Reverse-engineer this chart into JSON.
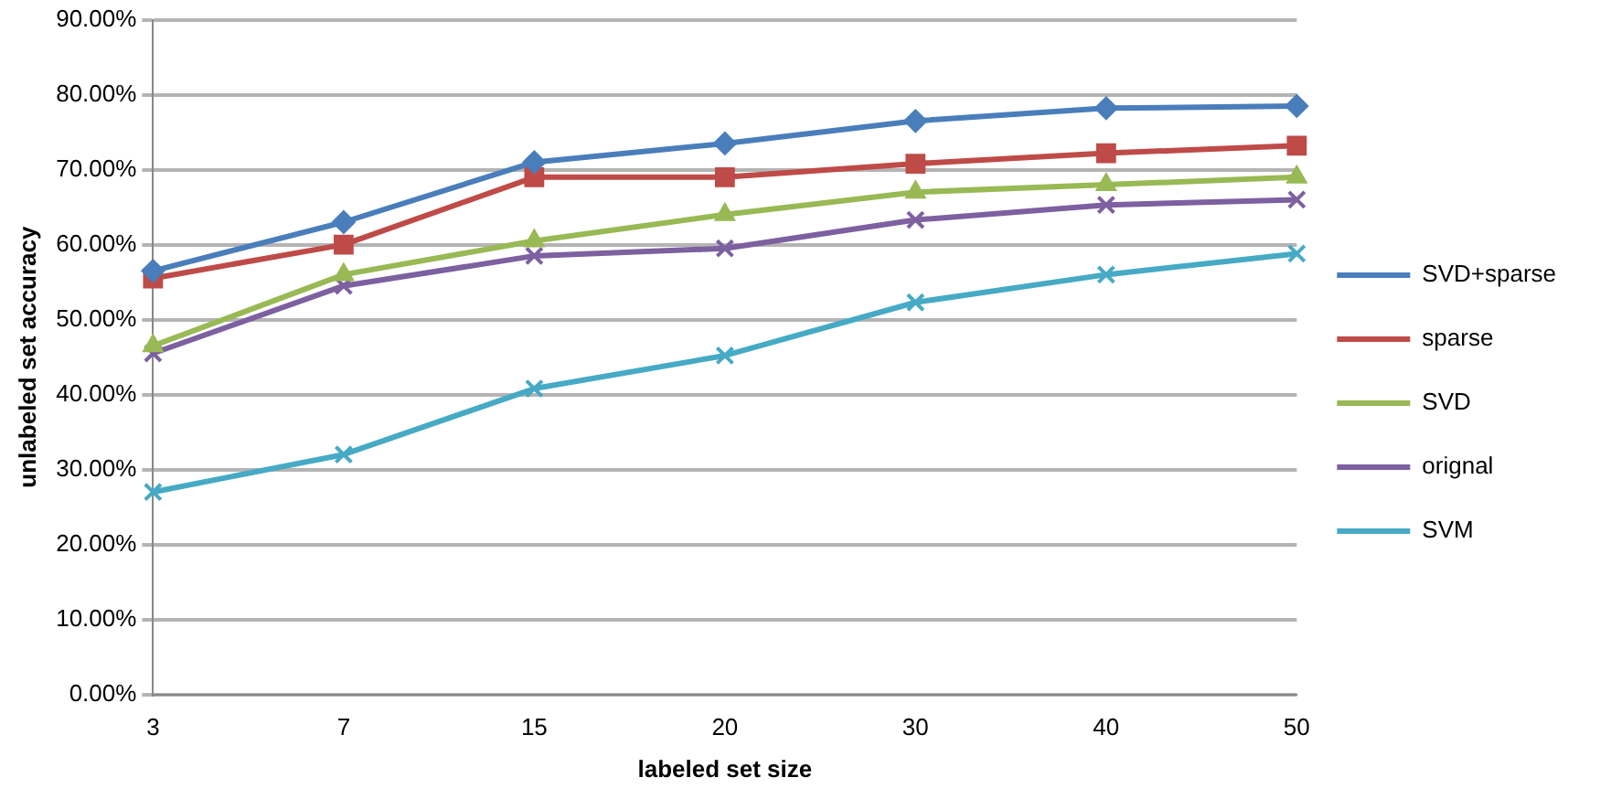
{
  "chart_data": {
    "type": "line",
    "xlabel": "labeled set size",
    "ylabel": "unlabeled set accuracy",
    "categories": [
      "3",
      "7",
      "15",
      "20",
      "30",
      "40",
      "50"
    ],
    "series": [
      {
        "name": "SVD+sparse",
        "color": "#4a7ebb",
        "marker": "diamond",
        "values": [
          56.5,
          63,
          71,
          73.5,
          76.5,
          78.2,
          78.5
        ]
      },
      {
        "name": "sparse",
        "color": "#be4b48",
        "marker": "square",
        "values": [
          55.5,
          60,
          69,
          69,
          70.8,
          72.2,
          73.2
        ]
      },
      {
        "name": "SVD",
        "color": "#98b954",
        "marker": "triangle",
        "values": [
          46.5,
          56,
          60.5,
          64,
          67,
          68,
          69
        ]
      },
      {
        "name": "orignal",
        "color": "#7d60a0",
        "marker": "cross",
        "values": [
          45.5,
          54.5,
          58.5,
          59.5,
          63.3,
          65.3,
          66
        ]
      },
      {
        "name": "SVM",
        "color": "#46aac5",
        "marker": "cross",
        "values": [
          27,
          32,
          40.8,
          45.2,
          52.3,
          56,
          58.8
        ]
      }
    ],
    "ylim": [
      0,
      90
    ],
    "yticks": [
      {
        "value": 0,
        "label": "0.00%"
      },
      {
        "value": 10,
        "label": "10.00%"
      },
      {
        "value": 20,
        "label": "20.00%"
      },
      {
        "value": 30,
        "label": "30.00%"
      },
      {
        "value": 40,
        "label": "40.00%"
      },
      {
        "value": 50,
        "label": "50.00%"
      },
      {
        "value": 60,
        "label": "60.00%"
      },
      {
        "value": 70,
        "label": "70.00%"
      },
      {
        "value": 80,
        "label": "80.00%"
      },
      {
        "value": 90,
        "label": "90.00%"
      }
    ],
    "grid": "y",
    "legend": "right",
    "line_style": "solid"
  }
}
